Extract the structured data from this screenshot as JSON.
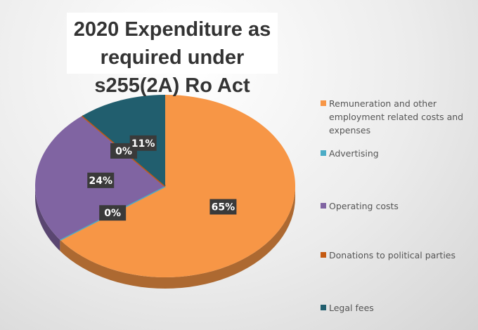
{
  "chart_data": {
    "type": "pie",
    "title": "2020 Expenditure as required under s255(2A) Ro Act",
    "categories": [
      "Remuneration and other employment related costs and expenses",
      "Advertising",
      "Operating costs",
      "Donations to political parties",
      "Legal fees"
    ],
    "values": [
      65,
      0,
      24,
      0,
      11
    ],
    "value_labels": [
      "65%",
      "0%",
      "24%",
      "0%",
      "11%"
    ],
    "colors": [
      "#f79646",
      "#4bacc6",
      "#8064a2",
      "#c55a11",
      "#215e6e"
    ],
    "legend": "right"
  }
}
